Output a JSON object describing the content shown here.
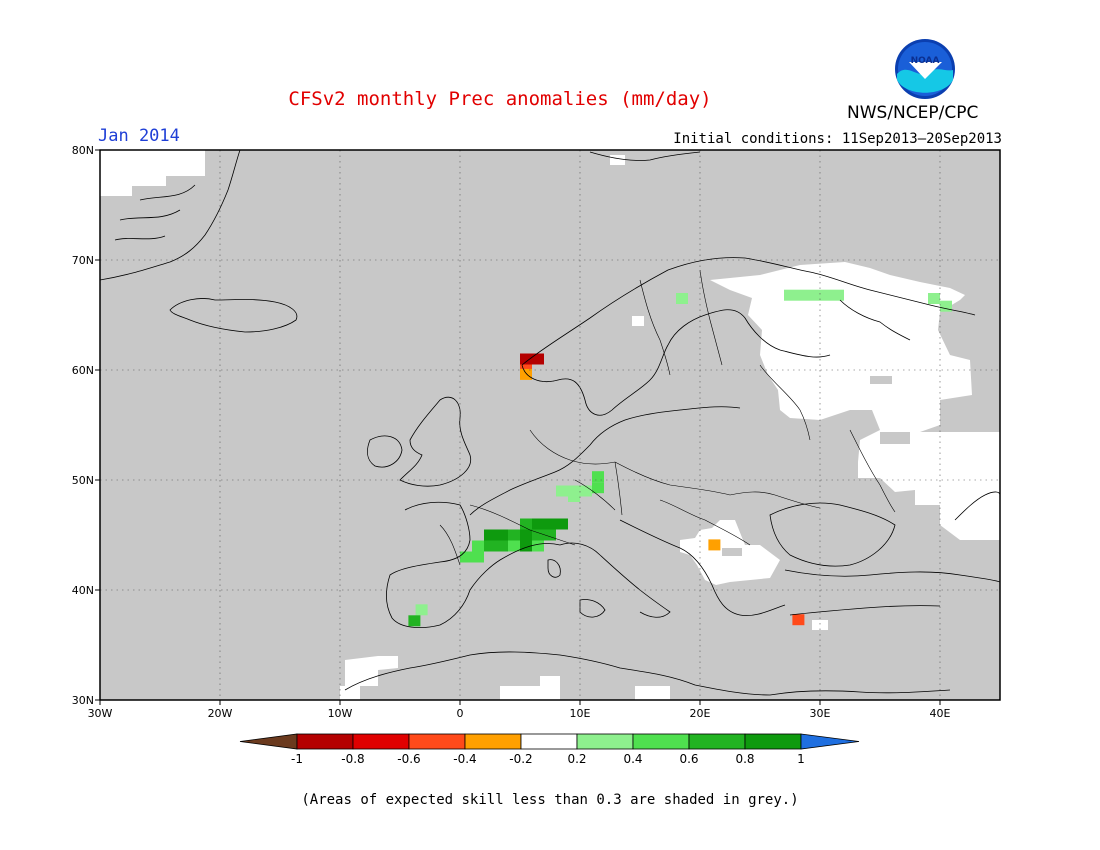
{
  "title": "CFSv2 monthly Prec anomalies (mm/day)",
  "month": "Jan 2014",
  "initial_conditions": "Initial conditions: 11Sep2013–20Sep2013",
  "agency": "NWS/NCEP/CPC",
  "logo_text": "NOAA",
  "footer": "(Areas of expected skill less than 0.3 are shaded in grey.)",
  "map": {
    "lon_range": [
      -30,
      45
    ],
    "lat_range": [
      30,
      80
    ],
    "x_ticks": [
      "30W",
      "20W",
      "10W",
      "0",
      "10E",
      "20E",
      "30E",
      "40E"
    ],
    "y_ticks": [
      "30N",
      "40N",
      "50N",
      "60N",
      "70N",
      "80N"
    ],
    "grid": true,
    "skill_shading_color": "#c8c8c8",
    "anomaly_cells": [
      {
        "lon": 5.5,
        "lat": 61,
        "class": "-0.8"
      },
      {
        "lon": 6.5,
        "lat": 61,
        "class": "-0.8"
      },
      {
        "lon": 5.5,
        "lat": 60,
        "class": "-0.6"
      },
      {
        "lon": 5.5,
        "lat": 59.6,
        "class": "-0.4"
      },
      {
        "lon": 28.2,
        "lat": 37.3,
        "class": "-0.6"
      },
      {
        "lon": 21.2,
        "lat": 44.1,
        "class": "-0.4"
      },
      {
        "lon": 0.5,
        "lat": 43,
        "class": "0.4"
      },
      {
        "lon": 1.5,
        "lat": 43,
        "class": "0.4"
      },
      {
        "lon": 1.5,
        "lat": 44,
        "class": "0.4"
      },
      {
        "lon": 2.5,
        "lat": 44,
        "class": "0.6"
      },
      {
        "lon": 2.5,
        "lat": 45,
        "class": "0.8"
      },
      {
        "lon": 3.5,
        "lat": 44,
        "class": "0.6"
      },
      {
        "lon": 3.5,
        "lat": 45,
        "class": "0.8"
      },
      {
        "lon": 4.5,
        "lat": 44,
        "class": "0.4"
      },
      {
        "lon": 4.5,
        "lat": 45,
        "class": "0.6"
      },
      {
        "lon": 5.5,
        "lat": 44,
        "class": "0.8"
      },
      {
        "lon": 5.5,
        "lat": 45,
        "class": "0.8"
      },
      {
        "lon": 5.5,
        "lat": 46,
        "class": "0.6"
      },
      {
        "lon": 6.5,
        "lat": 44,
        "class": "0.4"
      },
      {
        "lon": 6.5,
        "lat": 45,
        "class": "0.6"
      },
      {
        "lon": 6.5,
        "lat": 46,
        "class": "0.8"
      },
      {
        "lon": 7.5,
        "lat": 45,
        "class": "0.6"
      },
      {
        "lon": 7.5,
        "lat": 46,
        "class": "0.8"
      },
      {
        "lon": 8.5,
        "lat": 46,
        "class": "0.8"
      },
      {
        "lon": 8.5,
        "lat": 49,
        "class": "0.2"
      },
      {
        "lon": 9.5,
        "lat": 49,
        "class": "0.2"
      },
      {
        "lon": 9.5,
        "lat": 48.5,
        "class": "0.2"
      },
      {
        "lon": 10.5,
        "lat": 49,
        "class": "0.2"
      },
      {
        "lon": 11.5,
        "lat": 49.3,
        "class": "0.4"
      },
      {
        "lon": 11.5,
        "lat": 50.3,
        "class": "0.4"
      },
      {
        "lon": -3.2,
        "lat": 38.2,
        "class": "0.2"
      },
      {
        "lon": -3.8,
        "lat": 37.2,
        "class": "0.6"
      },
      {
        "lon": 18.5,
        "lat": 66.5,
        "class": "0.2"
      },
      {
        "lon": 27.5,
        "lat": 66.8,
        "class": "0.2"
      },
      {
        "lon": 28.5,
        "lat": 66.8,
        "class": "0.2"
      },
      {
        "lon": 29.5,
        "lat": 66.8,
        "class": "0.2"
      },
      {
        "lon": 30.5,
        "lat": 66.8,
        "class": "0.2"
      },
      {
        "lon": 31.5,
        "lat": 66.8,
        "class": "0.2"
      },
      {
        "lon": 39.5,
        "lat": 66.5,
        "class": "0.2"
      },
      {
        "lon": 40.5,
        "lat": 65.8,
        "class": "0.2"
      }
    ]
  },
  "colorbar": {
    "labels": [
      "-1",
      "-0.8",
      "-0.6",
      "-0.4",
      "-0.2",
      "0.2",
      "0.4",
      "0.6",
      "0.8",
      "1"
    ],
    "colors": [
      "#6b3a1e",
      "#b40000",
      "#e00000",
      "#ff4a1a",
      "#ffa000",
      "#ffffff",
      "#8ef08e",
      "#4fe04f",
      "#22b322",
      "#0e9a0e",
      "#1f6fe0"
    ],
    "class_colors": {
      "-0.8": "#b40000",
      "-0.6": "#ff4a1a",
      "-0.4": "#ffa000",
      "0.2": "#8ef08e",
      "0.4": "#4fe04f",
      "0.6": "#22b322",
      "0.8": "#0e9a0e"
    }
  }
}
